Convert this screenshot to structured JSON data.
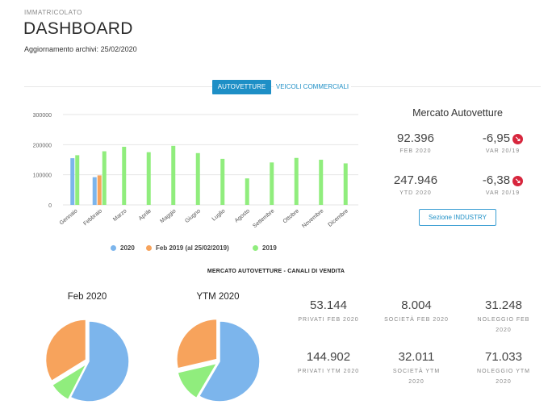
{
  "header": {
    "kicker": "IMMATRICOLATO",
    "title": "DASHBOARD",
    "update_label": "Aggiornamento archivi:",
    "update_date": "25/02/2020"
  },
  "tabs": [
    {
      "label": "AUTOVETTURE",
      "active": true
    },
    {
      "label": "VEICOLI COMMERCIALI",
      "active": false
    }
  ],
  "chart_data": {
    "type": "bar",
    "categories": [
      "Gennaio",
      "Febbraio",
      "Marzo",
      "Aprile",
      "Maggio",
      "Giugno",
      "Luglio",
      "Agosto",
      "Settembre",
      "Ottobre",
      "Novembre",
      "Dicembre"
    ],
    "series": [
      {
        "name": "2020",
        "color": "#7cb5ec",
        "values": [
          155000,
          92000,
          null,
          null,
          null,
          null,
          null,
          null,
          null,
          null,
          null,
          null
        ]
      },
      {
        "name": "Feb 2019 (al 25/02/2019)",
        "color": "#f7a35c",
        "values": [
          null,
          98000,
          null,
          null,
          null,
          null,
          null,
          null,
          null,
          null,
          null,
          null
        ]
      },
      {
        "name": "2019",
        "color": "#90ed7d",
        "values": [
          165000,
          178000,
          193000,
          175000,
          196000,
          172000,
          153000,
          88000,
          141000,
          156000,
          150000,
          138000
        ]
      }
    ],
    "yticks": [
      "0",
      "100000",
      "200000",
      "300000"
    ],
    "ylim": [
      0,
      300000
    ],
    "grid": true,
    "legend": "bottom"
  },
  "mercato": {
    "title": "Mercato Autovetture",
    "feb_value": "92.396",
    "feb_label": "FEB 2020",
    "feb_var": "-6,95",
    "feb_var_label": "VAR 20/19",
    "ytd_value": "247.946",
    "ytd_label": "YTD 2020",
    "ytd_var": "-6,38",
    "ytd_var_label": "VAR 20/19",
    "badge_icon": "arrow-down-right-icon",
    "button_label": "Sezione INDUSTRY"
  },
  "channels": {
    "section_title": "MERCATO AUTOVETTURE - CANALI DI VENDITA",
    "pies": [
      {
        "title": "Feb 2020",
        "chart_data": {
          "type": "pie",
          "labels": [
            "Privati",
            "Società",
            "Noleggio"
          ],
          "values": [
            53144,
            8004,
            31248
          ],
          "colors": [
            "#7cb5ec",
            "#90ed7d",
            "#f7a35c"
          ]
        }
      },
      {
        "title": "YTM 2020",
        "chart_data": {
          "type": "pie",
          "labels": [
            "Privati",
            "Società",
            "Noleggio"
          ],
          "values": [
            144902,
            32011,
            71033
          ],
          "colors": [
            "#7cb5ec",
            "#90ed7d",
            "#f7a35c"
          ]
        }
      }
    ],
    "kpis": [
      {
        "value": "53.144",
        "label": "PRIVATI FEB 2020"
      },
      {
        "value": "8.004",
        "label": "SOCIETÀ FEB 2020"
      },
      {
        "value": "31.248",
        "label": "NOLEGGIO FEB 2020"
      },
      {
        "value": "144.902",
        "label": "PRIVATI YTM 2020"
      },
      {
        "value": "32.011",
        "label": "SOCIETÀ YTM 2020"
      },
      {
        "value": "71.033",
        "label": "NOLEGGIO YTM 2020"
      }
    ]
  }
}
